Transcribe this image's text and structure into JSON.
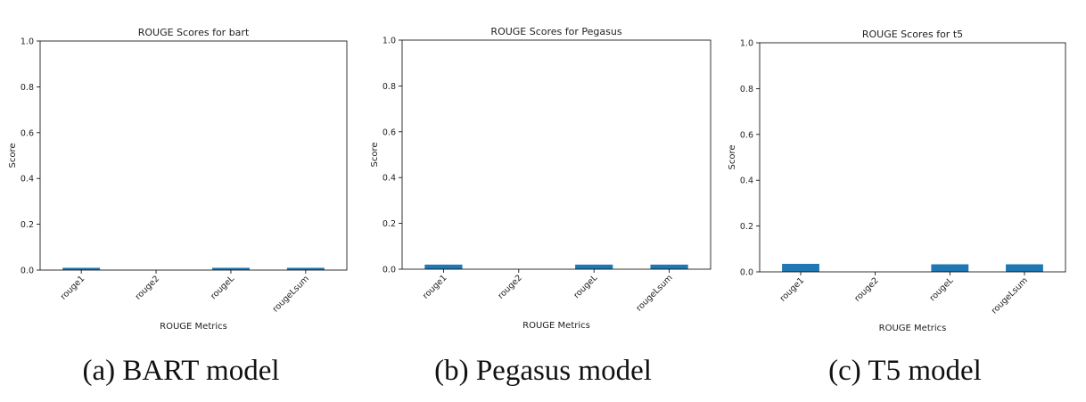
{
  "chart_data": [
    {
      "type": "bar",
      "title": "ROUGE Scores for bart",
      "xlabel": "ROUGE Metrics",
      "ylabel": "Score",
      "categories": [
        "rouge1",
        "rouge2",
        "rougeL",
        "rougeLsum"
      ],
      "values": [
        0.01,
        0.0,
        0.01,
        0.01
      ],
      "ylim": [
        0,
        1.0
      ],
      "yticks": [
        "0.0",
        "0.2",
        "0.4",
        "0.6",
        "0.8",
        "1.0"
      ],
      "bar_color": "#1f77b4",
      "grid": false,
      "caption": "(a) BART model"
    },
    {
      "type": "bar",
      "title": "ROUGE Scores for Pegasus",
      "xlabel": "ROUGE Metrics",
      "ylabel": "Score",
      "categories": [
        "rouge1",
        "rouge2",
        "rougeL",
        "rougeLsum"
      ],
      "values": [
        0.02,
        0.0,
        0.02,
        0.02
      ],
      "ylim": [
        0,
        1.0
      ],
      "yticks": [
        "0.0",
        "0.2",
        "0.4",
        "0.6",
        "0.8",
        "1.0"
      ],
      "bar_color": "#1f77b4",
      "grid": false,
      "caption": "(b) Pegasus model"
    },
    {
      "type": "bar",
      "title": "ROUGE Scores for t5",
      "xlabel": "ROUGE Metrics",
      "ylabel": "Score",
      "categories": [
        "rouge1",
        "rouge2",
        "rougeL",
        "rougeLsum"
      ],
      "values": [
        0.035,
        0.0,
        0.033,
        0.033
      ],
      "ylim": [
        0,
        1.0
      ],
      "yticks": [
        "0.0",
        "0.2",
        "0.4",
        "0.6",
        "0.8",
        "1.0"
      ],
      "bar_color": "#1f77b4",
      "grid": false,
      "caption": "(c) T5 model"
    }
  ]
}
